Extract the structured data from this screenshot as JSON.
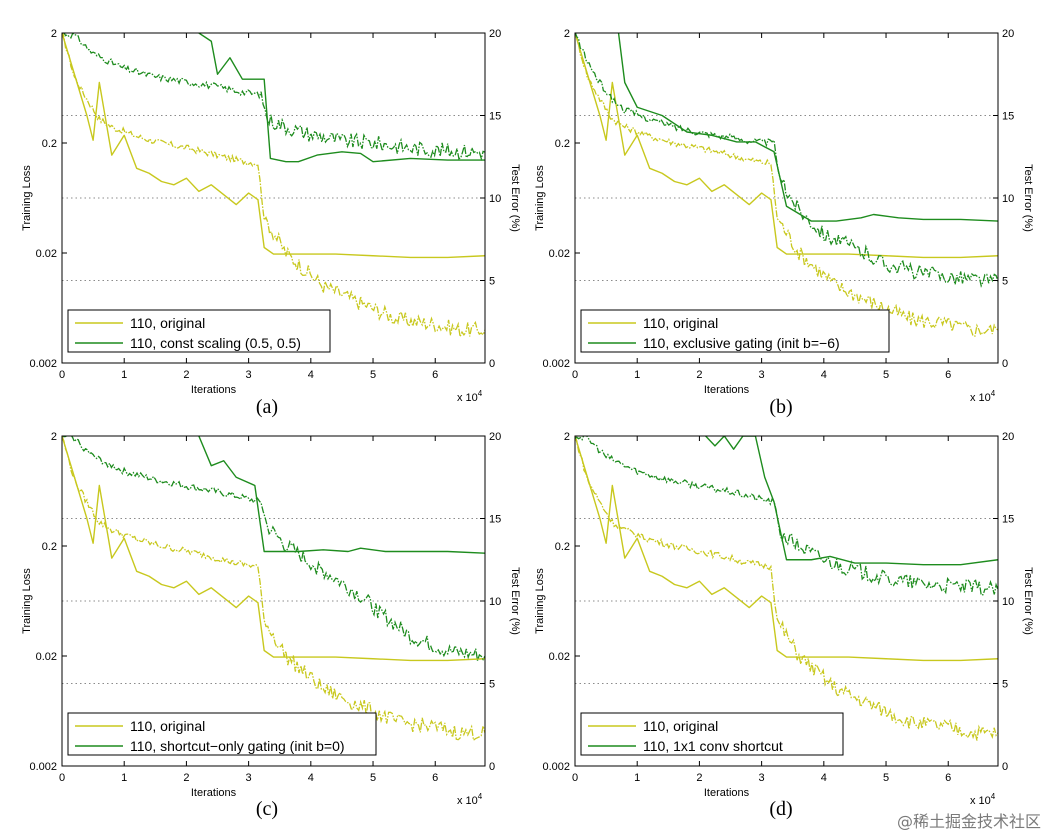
{
  "figure": {
    "watermark": "@稀土掘金技术社区",
    "original_color": "#c8c81e",
    "variant_color": "#1e8c1e",
    "xlabel": "Iterations",
    "ylabel_left": "Training Loss",
    "ylabel_right": "Test Error (%)",
    "x_multiplier_base": "x 10",
    "x_multiplier_exp": "4"
  },
  "chart_data": [
    {
      "type": "line",
      "caption": "(a)",
      "xlabel": "Iterations",
      "ylabel": "Training Loss",
      "y2label": "Test Error (%)",
      "xlim": [
        0,
        68000
      ],
      "ylim": [
        0.002,
        2
      ],
      "yscale": "log",
      "y2lim": [
        0,
        20
      ],
      "xticks": [
        "0",
        "1",
        "2",
        "3",
        "4",
        "5",
        "6"
      ],
      "yticks": [
        "0.002",
        "0.02",
        "0.2",
        "2"
      ],
      "y2ticks": [
        "0",
        "5",
        "10",
        "15",
        "20"
      ],
      "legend": [
        "110, original",
        "110, const scaling (0.5, 0.5)"
      ],
      "legend_position": "lower-left",
      "series": [
        {
          "name": "110, original",
          "kind": "train",
          "color_key": "original",
          "x": [
            0,
            2000,
            4000,
            6000,
            8000,
            12000,
            16000,
            20000,
            24000,
            28000,
            31500,
            32500,
            36000,
            42000,
            48000,
            54000,
            60000,
            64000,
            68000
          ],
          "y": [
            2.0,
            0.8,
            0.5,
            0.33,
            0.28,
            0.23,
            0.2,
            0.18,
            0.16,
            0.14,
            0.13,
            0.042,
            0.02,
            0.01,
            0.007,
            0.005,
            0.0045,
            0.004,
            0.004
          ]
        },
        {
          "name": "110, original",
          "kind": "test",
          "color_key": "original",
          "x": [
            0,
            2000,
            4000,
            5000,
            6000,
            8000,
            10000,
            12000,
            14000,
            16000,
            18000,
            20000,
            22000,
            24000,
            26000,
            28000,
            30000,
            31500,
            32500,
            34000,
            38000,
            44000,
            50000,
            56000,
            62000,
            68000
          ],
          "y": [
            20,
            17.5,
            15,
            13.5,
            17,
            12.6,
            13.8,
            11.8,
            11.5,
            11,
            10.8,
            11.2,
            10.4,
            10.8,
            10.2,
            9.6,
            10.3,
            9.9,
            7,
            6.6,
            6.6,
            6.6,
            6.5,
            6.4,
            6.4,
            6.5
          ]
        },
        {
          "name": "110, const scaling (0.5, 0.5)",
          "kind": "train",
          "color_key": "variant",
          "x": [
            0,
            2000,
            5000,
            10000,
            15000,
            20000,
            25000,
            29000,
            32000,
            33000,
            36000,
            40000,
            45000,
            50000,
            56000,
            62000,
            68000
          ],
          "y": [
            2.0,
            1.9,
            1.3,
            0.95,
            0.8,
            0.72,
            0.65,
            0.58,
            0.55,
            0.33,
            0.28,
            0.24,
            0.21,
            0.2,
            0.18,
            0.17,
            0.165
          ]
        },
        {
          "name": "110, const scaling (0.5, 0.5)",
          "kind": "test",
          "color_key": "variant",
          "x": [
            22000,
            24000,
            25000,
            27000,
            29000,
            31000,
            32500,
            33500,
            36000,
            38000,
            41000,
            45000,
            48000,
            50000,
            56000,
            62000,
            68000
          ],
          "y": [
            20,
            19.5,
            17.5,
            18.5,
            17.2,
            17.2,
            17.2,
            12.4,
            12.2,
            12.2,
            12.6,
            12.8,
            12.7,
            12.2,
            12.4,
            12.3,
            12.3
          ]
        }
      ]
    },
    {
      "type": "line",
      "caption": "(b)",
      "xlabel": "Iterations",
      "ylabel": "Training Loss",
      "y2label": "Test Error (%)",
      "xlim": [
        0,
        68000
      ],
      "ylim": [
        0.002,
        2
      ],
      "yscale": "log",
      "y2lim": [
        0,
        20
      ],
      "xticks": [
        "0",
        "1",
        "2",
        "3",
        "4",
        "5",
        "6"
      ],
      "yticks": [
        "0.002",
        "0.02",
        "0.2",
        "2"
      ],
      "y2ticks": [
        "0",
        "5",
        "10",
        "15",
        "20"
      ],
      "legend": [
        "110, original",
        "110, exclusive gating (init b=−6)"
      ],
      "legend_position": "lower-left",
      "series": [
        {
          "name": "110, original",
          "kind": "train",
          "color_key": "original",
          "x": [
            0,
            2000,
            4000,
            6000,
            8000,
            12000,
            16000,
            20000,
            24000,
            28000,
            31500,
            32500,
            36000,
            42000,
            48000,
            54000,
            60000,
            64000,
            68000
          ],
          "y": [
            2.0,
            0.8,
            0.5,
            0.33,
            0.28,
            0.23,
            0.2,
            0.18,
            0.16,
            0.14,
            0.13,
            0.042,
            0.02,
            0.01,
            0.007,
            0.005,
            0.0045,
            0.004,
            0.004
          ]
        },
        {
          "name": "110, original",
          "kind": "test",
          "color_key": "original",
          "x": [
            0,
            2000,
            4000,
            5000,
            6000,
            8000,
            10000,
            12000,
            14000,
            16000,
            18000,
            20000,
            22000,
            24000,
            26000,
            28000,
            30000,
            31500,
            32500,
            34000,
            38000,
            44000,
            50000,
            56000,
            62000,
            68000
          ],
          "y": [
            20,
            17.5,
            15,
            13.5,
            17,
            12.6,
            13.8,
            11.8,
            11.5,
            11,
            10.8,
            11.2,
            10.4,
            10.8,
            10.2,
            9.6,
            10.3,
            9.9,
            7,
            6.6,
            6.6,
            6.6,
            6.5,
            6.4,
            6.4,
            6.5
          ]
        },
        {
          "name": "110, exclusive gating (init b=−6)",
          "kind": "train",
          "color_key": "variant",
          "x": [
            0,
            2000,
            4000,
            6000,
            8000,
            12000,
            16000,
            20000,
            24000,
            28000,
            32000,
            33000,
            36000,
            40000,
            45000,
            50000,
            56000,
            62000,
            68000
          ],
          "y": [
            2.0,
            1.1,
            0.7,
            0.5,
            0.4,
            0.33,
            0.28,
            0.25,
            0.23,
            0.21,
            0.2,
            0.09,
            0.05,
            0.03,
            0.022,
            0.016,
            0.013,
            0.012,
            0.011
          ]
        },
        {
          "name": "110, exclusive gating (init b=−6)",
          "kind": "test",
          "color_key": "variant",
          "x": [
            7000,
            8000,
            10000,
            14000,
            18000,
            22000,
            26000,
            29000,
            32000,
            34000,
            38000,
            42000,
            46000,
            48000,
            52000,
            56000,
            62000,
            68000
          ],
          "y": [
            20,
            17,
            15.5,
            15,
            14,
            13.8,
            13.4,
            13.4,
            12.8,
            9.5,
            8.6,
            8.6,
            8.8,
            9,
            8.8,
            8.7,
            8.7,
            8.6
          ]
        }
      ]
    },
    {
      "type": "line",
      "caption": "(c)",
      "xlabel": "Iterations",
      "ylabel": "Training Loss",
      "y2label": "Test Error (%)",
      "xlim": [
        0,
        68000
      ],
      "ylim": [
        0.002,
        2
      ],
      "yscale": "log",
      "y2lim": [
        0,
        20
      ],
      "xticks": [
        "0",
        "1",
        "2",
        "3",
        "4",
        "5",
        "6"
      ],
      "yticks": [
        "0.002",
        "0.02",
        "0.2",
        "2"
      ],
      "y2ticks": [
        "0",
        "5",
        "10",
        "15",
        "20"
      ],
      "legend": [
        "110, original",
        "110, shortcut−only gating (init b=0)"
      ],
      "legend_position": "lower-left",
      "series": [
        {
          "name": "110, original",
          "kind": "train",
          "color_key": "original",
          "x": [
            0,
            2000,
            4000,
            6000,
            8000,
            12000,
            16000,
            20000,
            24000,
            28000,
            31500,
            32500,
            36000,
            42000,
            48000,
            54000,
            60000,
            64000,
            68000
          ],
          "y": [
            2.0,
            0.8,
            0.5,
            0.33,
            0.28,
            0.23,
            0.2,
            0.18,
            0.16,
            0.14,
            0.13,
            0.042,
            0.02,
            0.01,
            0.007,
            0.005,
            0.0045,
            0.004,
            0.004
          ]
        },
        {
          "name": "110, original",
          "kind": "test",
          "color_key": "original",
          "x": [
            0,
            2000,
            4000,
            5000,
            6000,
            8000,
            10000,
            12000,
            14000,
            16000,
            18000,
            20000,
            22000,
            24000,
            26000,
            28000,
            30000,
            31500,
            32500,
            34000,
            38000,
            44000,
            50000,
            56000,
            62000,
            68000
          ],
          "y": [
            20,
            17.5,
            15,
            13.5,
            17,
            12.6,
            13.8,
            11.8,
            11.5,
            11,
            10.8,
            11.2,
            10.4,
            10.8,
            10.2,
            9.6,
            10.3,
            9.9,
            7,
            6.6,
            6.6,
            6.6,
            6.5,
            6.4,
            6.4,
            6.5
          ]
        },
        {
          "name": "110, shortcut−only gating (init b=0)",
          "kind": "train",
          "color_key": "variant",
          "x": [
            0,
            2000,
            5000,
            10000,
            15000,
            20000,
            25000,
            29000,
            32000,
            33000,
            36000,
            40000,
            44000,
            48000,
            52000,
            56000,
            62000,
            68000
          ],
          "y": [
            2.0,
            1.9,
            1.3,
            0.95,
            0.8,
            0.7,
            0.62,
            0.55,
            0.5,
            0.3,
            0.2,
            0.14,
            0.1,
            0.07,
            0.045,
            0.03,
            0.022,
            0.02
          ]
        },
        {
          "name": "110, shortcut−only gating (init b=0)",
          "kind": "test",
          "color_key": "variant",
          "x": [
            22000,
            24000,
            26000,
            28000,
            31000,
            32500,
            34000,
            38000,
            42000,
            46000,
            48000,
            52000,
            56000,
            62000,
            68000
          ],
          "y": [
            20,
            18.2,
            18.5,
            17.5,
            17,
            13,
            13,
            13,
            13.1,
            13,
            13.2,
            13,
            13,
            13,
            12.9
          ]
        }
      ]
    },
    {
      "type": "line",
      "caption": "(d)",
      "xlabel": "Iterations",
      "ylabel": "Training Loss",
      "y2label": "Test Error (%)",
      "xlim": [
        0,
        68000
      ],
      "ylim": [
        0.002,
        2
      ],
      "yscale": "log",
      "y2lim": [
        0,
        20
      ],
      "xticks": [
        "0",
        "1",
        "2",
        "3",
        "4",
        "5",
        "6"
      ],
      "yticks": [
        "0.002",
        "0.02",
        "0.2",
        "2"
      ],
      "y2ticks": [
        "0",
        "5",
        "10",
        "15",
        "20"
      ],
      "legend": [
        "110, original",
        "110, 1x1 conv shortcut"
      ],
      "legend_position": "lower-left",
      "series": [
        {
          "name": "110, original",
          "kind": "train",
          "color_key": "original",
          "x": [
            0,
            2000,
            4000,
            6000,
            8000,
            12000,
            16000,
            20000,
            24000,
            28000,
            31500,
            32500,
            36000,
            42000,
            48000,
            54000,
            60000,
            64000,
            68000
          ],
          "y": [
            2.0,
            0.8,
            0.5,
            0.33,
            0.28,
            0.23,
            0.2,
            0.18,
            0.16,
            0.14,
            0.13,
            0.042,
            0.02,
            0.01,
            0.007,
            0.005,
            0.0045,
            0.004,
            0.004
          ]
        },
        {
          "name": "110, original",
          "kind": "test",
          "color_key": "original",
          "x": [
            0,
            2000,
            4000,
            5000,
            6000,
            8000,
            10000,
            12000,
            14000,
            16000,
            18000,
            20000,
            22000,
            24000,
            26000,
            28000,
            30000,
            31500,
            32500,
            34000,
            38000,
            44000,
            50000,
            56000,
            62000,
            68000
          ],
          "y": [
            20,
            17.5,
            15,
            13.5,
            17,
            12.6,
            13.8,
            11.8,
            11.5,
            11,
            10.8,
            11.2,
            10.4,
            10.8,
            10.2,
            9.6,
            10.3,
            9.9,
            7,
            6.6,
            6.6,
            6.6,
            6.5,
            6.4,
            6.4,
            6.5
          ]
        },
        {
          "name": "110, 1x1 conv shortcut",
          "kind": "train",
          "color_key": "variant",
          "x": [
            0,
            2000,
            5000,
            10000,
            15000,
            20000,
            25000,
            29000,
            32000,
            33000,
            36000,
            40000,
            45000,
            50000,
            56000,
            62000,
            68000
          ],
          "y": [
            2.0,
            1.9,
            1.3,
            0.95,
            0.8,
            0.7,
            0.62,
            0.55,
            0.5,
            0.26,
            0.2,
            0.15,
            0.12,
            0.1,
            0.09,
            0.085,
            0.08
          ]
        },
        {
          "name": "110, 1x1 conv shortcut",
          "kind": "test",
          "color_key": "variant",
          "x": [
            21000,
            22500,
            24000,
            25500,
            27000,
            29000,
            30500,
            32000,
            34000,
            38000,
            41000,
            45000,
            50000,
            56000,
            62000,
            68000
          ],
          "y": [
            20,
            19.4,
            20,
            19.2,
            20,
            20,
            17.5,
            16,
            12.5,
            12.5,
            12.7,
            12.3,
            12.3,
            12.2,
            12.2,
            12.5
          ]
        }
      ]
    }
  ]
}
